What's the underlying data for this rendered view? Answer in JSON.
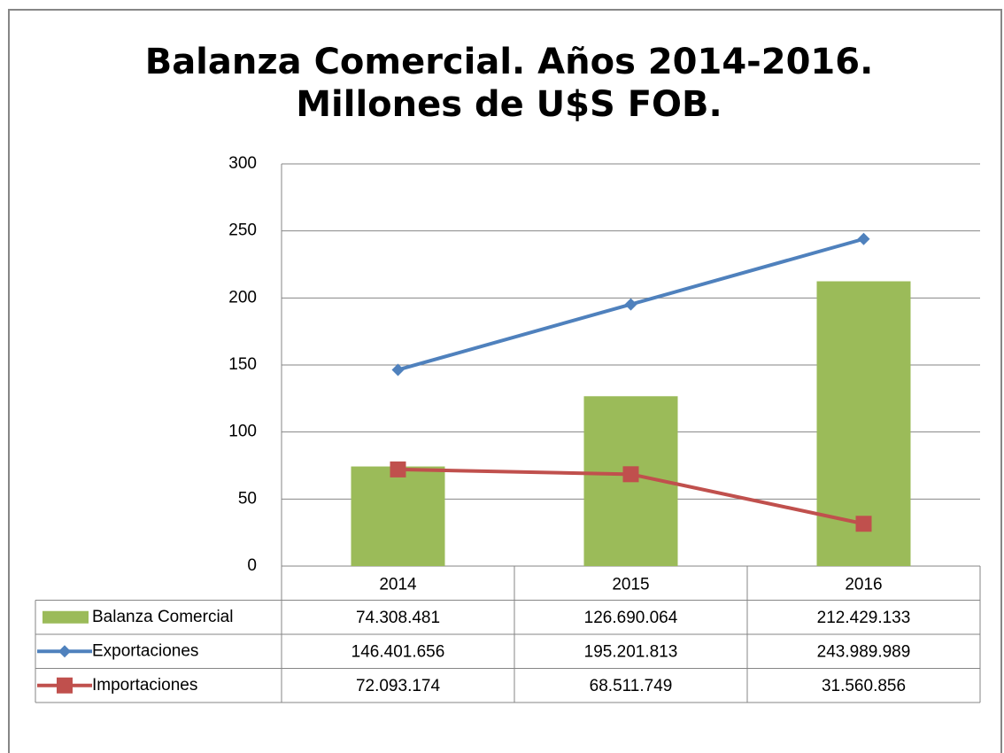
{
  "chart_data": {
    "type": "combo",
    "title": [
      "Balanza Comercial. Años 2014-2016.",
      "Millones de U$S FOB."
    ],
    "categories": [
      "2014",
      "2015",
      "2016"
    ],
    "series": [
      {
        "name": "Balanza Comercial",
        "type": "bar",
        "color": "#9bbb59",
        "values": [
          74.308481,
          126.690064,
          212.429133
        ],
        "value_labels": [
          "74.308.481",
          "126.690.064",
          "212.429.133"
        ]
      },
      {
        "name": "Exportaciones",
        "type": "line",
        "marker": "diamond",
        "color": "#4f81bd",
        "values": [
          146.401656,
          195.201813,
          243.989989
        ],
        "value_labels": [
          "146.401.656",
          "195.201.813",
          "243.989.989"
        ]
      },
      {
        "name": "Importaciones",
        "type": "line",
        "marker": "square",
        "color": "#c0504d",
        "values": [
          72.093174,
          68.511749,
          31.560856
        ],
        "value_labels": [
          "72.093.174",
          "68.511.749",
          "31.560.856"
        ]
      }
    ],
    "ylim": [
      0,
      300
    ],
    "yticks": [
      0,
      50,
      100,
      150,
      200,
      250,
      300
    ],
    "grid": true
  }
}
